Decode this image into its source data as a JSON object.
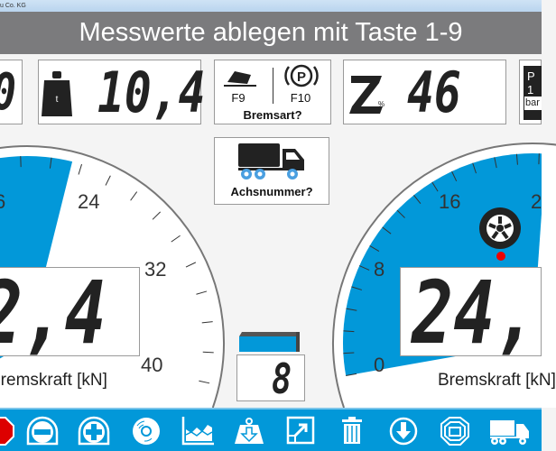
{
  "window": {
    "title_fragment": "u Co. KG"
  },
  "header": {
    "title": "Messwerte ablegen mit Taste 1-9"
  },
  "top": {
    "left_partial_value": "0",
    "weight": {
      "icon": "weight-icon",
      "unit": "t",
      "value": "10,4"
    },
    "brake_type": {
      "f9": "F9",
      "f10": "F10",
      "label": "Bremsart?",
      "icons": [
        "service-brake-pedal-icon",
        "parking-brake-icon"
      ]
    },
    "z": {
      "icon": "z-percent-icon",
      "value": "46"
    },
    "pressure": {
      "line1": "P",
      "line2": "1",
      "unit": "bar"
    }
  },
  "axle": {
    "label": "Achsnummer?",
    "icon": "truck-axle-icon"
  },
  "left_gauge": {
    "ticks": [
      "6",
      "24",
      "32",
      "40"
    ],
    "value": "2,4",
    "caption": "Bremskraft [kN]",
    "fill_color": "#0298d9"
  },
  "right_gauge": {
    "ticks": [
      "0",
      "8",
      "16",
      "2"
    ],
    "value": "24,",
    "caption": "Bremskraft [kN]",
    "fill_color": "#0298d9",
    "indicator": "#ee0000"
  },
  "center": {
    "axle_number": "8"
  },
  "toolbar": {
    "items": [
      "stop",
      "minus",
      "plus",
      "disc",
      "chart",
      "weight-download",
      "resize",
      "trash",
      "download",
      "brake-disc",
      "truck"
    ]
  }
}
